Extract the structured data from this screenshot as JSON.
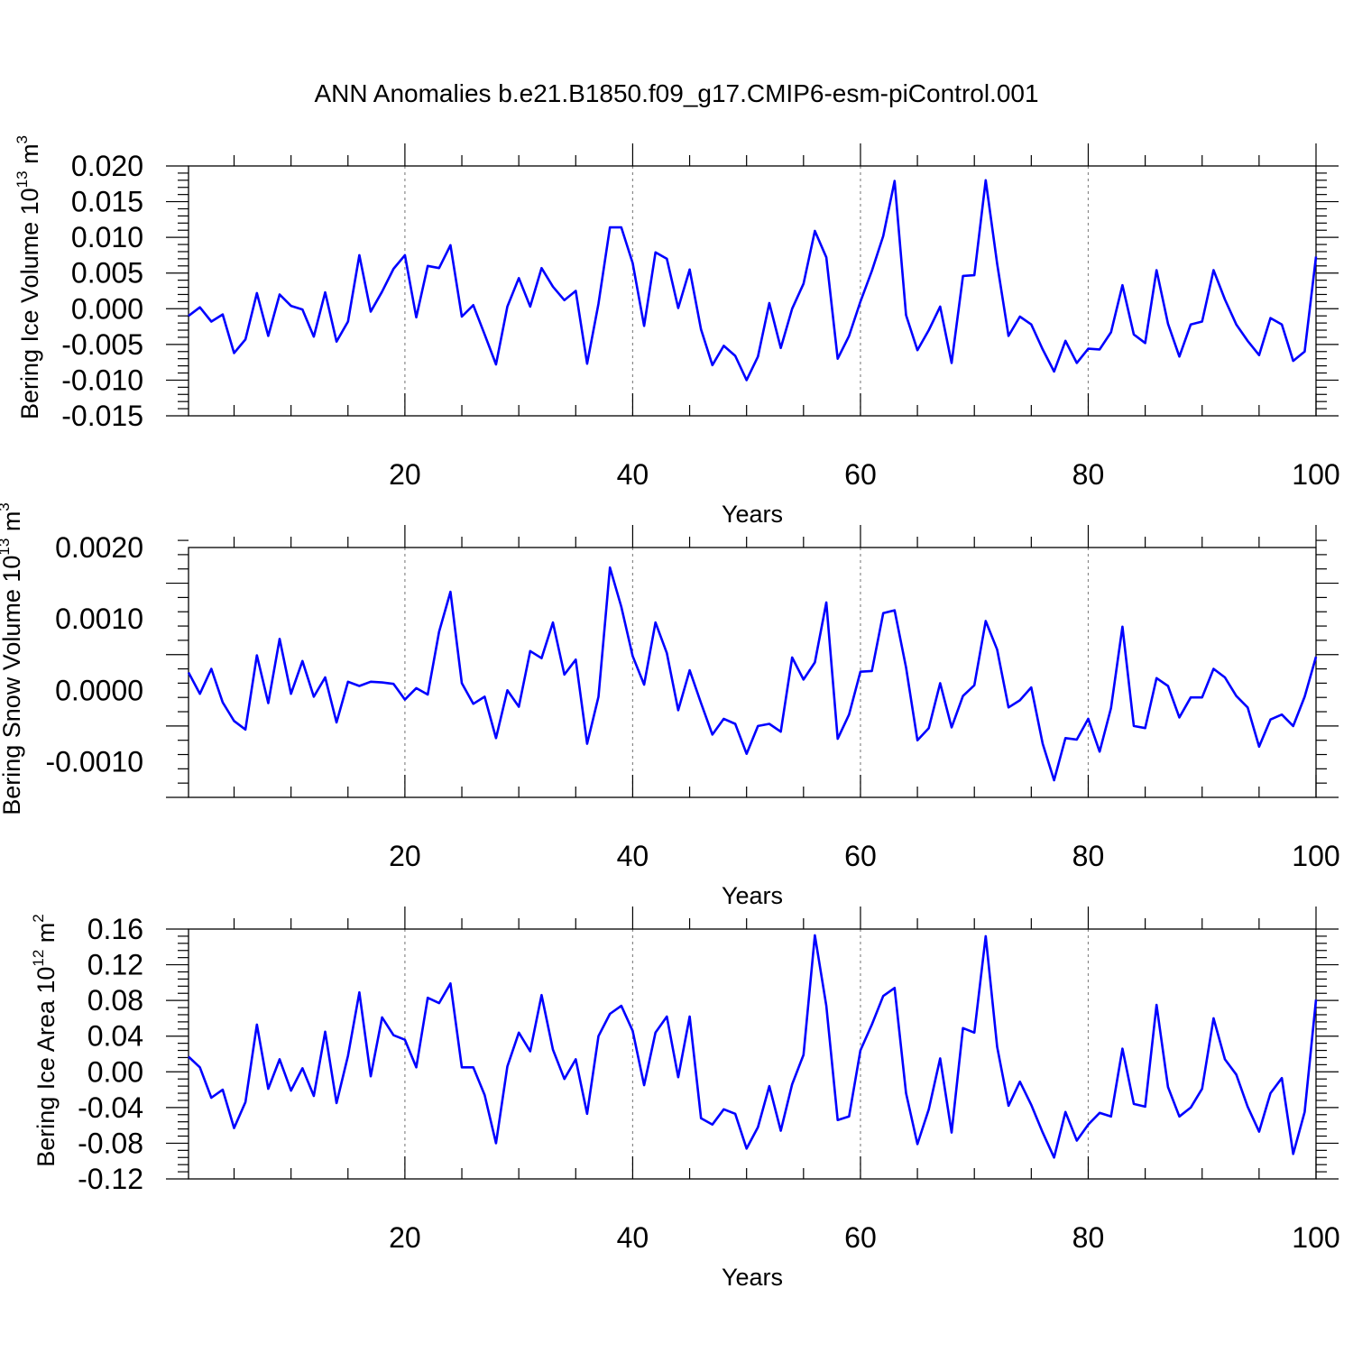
{
  "title": "ANN Anomalies b.e21.B1850.f09_g17.CMIP6-esm-piControl.001",
  "chart_data": [
    {
      "type": "line",
      "xlabel": "Years",
      "ylabel": "Bering Ice Volume 10",
      "ylabel_exp": "13",
      "ylabel_unit": " m",
      "ylabel_unit_exp": "3",
      "xlim": [
        1,
        100
      ],
      "ylim": [
        -0.015,
        0.02
      ],
      "xticks": [
        20,
        40,
        60,
        80,
        100
      ],
      "yticks": [
        -0.015,
        -0.01,
        -0.005,
        0.0,
        0.005,
        0.01,
        0.015,
        0.02
      ],
      "ytick_labels": [
        "-0.015",
        "-0.010",
        "-0.005",
        "0.000",
        "0.005",
        "0.010",
        "0.015",
        "0.020"
      ],
      "grid": "dashed vertical at x ticks",
      "line_color": "#0000ff",
      "x": [
        1,
        2,
        3,
        4,
        5,
        6,
        7,
        8,
        9,
        10,
        11,
        12,
        13,
        14,
        15,
        16,
        17,
        18,
        19,
        20,
        21,
        22,
        23,
        24,
        25,
        26,
        27,
        28,
        29,
        30,
        31,
        32,
        33,
        34,
        35,
        36,
        37,
        38,
        39,
        40,
        41,
        42,
        43,
        44,
        45,
        46,
        47,
        48,
        49,
        50,
        51,
        52,
        53,
        54,
        55,
        56,
        57,
        58,
        59,
        60,
        61,
        62,
        63,
        64,
        65,
        66,
        67,
        68,
        69,
        70,
        71,
        72,
        73,
        74,
        75,
        76,
        77,
        78,
        79,
        80,
        81,
        82,
        83,
        84,
        85,
        86,
        87,
        88,
        89,
        90,
        91,
        92,
        93,
        94,
        95,
        96,
        97,
        98,
        99,
        100
      ],
      "y": [
        -0.001,
        0.0002,
        -0.0018,
        -0.0008,
        -0.0062,
        -0.0043,
        0.0022,
        -0.0038,
        0.002,
        0.0004,
        -0.0001,
        -0.0039,
        0.0023,
        -0.0046,
        -0.0018,
        0.0075,
        -0.0004,
        0.0024,
        0.0056,
        0.0075,
        -0.0012,
        0.006,
        0.0057,
        0.0089,
        -0.0011,
        0.0005,
        -0.0036,
        -0.0078,
        0.0003,
        0.0043,
        0.0003,
        0.0057,
        0.0031,
        0.0012,
        0.0025,
        -0.0077,
        0.0007,
        0.0114,
        0.0114,
        0.0064,
        -0.0024,
        0.0079,
        0.007,
        0.0001,
        0.0055,
        -0.0029,
        -0.0079,
        -0.0052,
        -0.0066,
        -0.01,
        -0.0067,
        0.0008,
        -0.0055,
        0.0,
        0.0035,
        0.0109,
        0.0072,
        -0.007,
        -0.0038,
        0.001,
        0.0053,
        0.0102,
        0.0179,
        -0.0009,
        -0.0058,
        -0.003,
        0.0003,
        -0.0076,
        0.0046,
        0.0047,
        0.018,
        0.0063,
        -0.0038,
        -0.0011,
        -0.0022,
        -0.0057,
        -0.0088,
        -0.0045,
        -0.0076,
        -0.0056,
        -0.0057,
        -0.0033,
        0.0033,
        -0.0036,
        -0.0048,
        0.0054,
        -0.0021,
        -0.0067,
        -0.0022,
        -0.0018,
        0.0054,
        0.0013,
        -0.0022,
        -0.0045,
        -0.0065,
        -0.0013,
        -0.0022,
        -0.0073,
        -0.006,
        0.0073
      ]
    },
    {
      "type": "line",
      "xlabel": "Years",
      "ylabel": "Bering Snow Volume 10",
      "ylabel_exp": "13",
      "ylabel_unit": " m",
      "ylabel_unit_exp": "3",
      "xlim": [
        1,
        100
      ],
      "ylim": [
        -0.0015,
        0.002
      ],
      "xticks": [
        20,
        40,
        60,
        80,
        100
      ],
      "yticks": [
        -0.001,
        0.0,
        0.001,
        0.002
      ],
      "ytick_labels": [
        "-0.0010",
        "0.0000",
        "0.0010",
        "0.0020"
      ],
      "grid": "dashed vertical at x ticks",
      "line_color": "#0000ff",
      "x": [
        1,
        2,
        3,
        4,
        5,
        6,
        7,
        8,
        9,
        10,
        11,
        12,
        13,
        14,
        15,
        16,
        17,
        18,
        19,
        20,
        21,
        22,
        23,
        24,
        25,
        26,
        27,
        28,
        29,
        30,
        31,
        32,
        33,
        34,
        35,
        36,
        37,
        38,
        39,
        40,
        41,
        42,
        43,
        44,
        45,
        46,
        47,
        48,
        49,
        50,
        51,
        52,
        53,
        54,
        55,
        56,
        57,
        58,
        59,
        60,
        61,
        62,
        63,
        64,
        65,
        66,
        67,
        68,
        69,
        70,
        71,
        72,
        73,
        74,
        75,
        76,
        77,
        78,
        79,
        80,
        81,
        82,
        83,
        84,
        85,
        86,
        87,
        88,
        89,
        90,
        91,
        92,
        93,
        94,
        95,
        96,
        97,
        98,
        99,
        100
      ],
      "y": [
        0.00025,
        -5e-05,
        0.0003,
        -0.00017,
        -0.00043,
        -0.00055,
        0.00049,
        -0.00018,
        0.00072,
        -5e-05,
        0.00041,
        -9e-05,
        0.00018,
        -0.00045,
        0.00012,
        6e-05,
        0.00012,
        0.00011,
        9e-05,
        -0.00013,
        3e-05,
        -6e-05,
        0.00082,
        0.00138,
        0.0001,
        -0.00019,
        -9e-05,
        -0.00067,
        0.0,
        -0.00023,
        0.00055,
        0.00045,
        0.00095,
        0.00022,
        0.00043,
        -0.00075,
        -9e-05,
        0.00172,
        0.00117,
        0.00048,
        8e-05,
        0.00095,
        0.00052,
        -0.00028,
        0.00028,
        -0.00018,
        -0.00062,
        -0.0004,
        -0.00047,
        -0.00089,
        -0.0005,
        -0.00047,
        -0.00058,
        0.00046,
        0.00015,
        0.00039,
        0.00123,
        -0.00068,
        -0.00034,
        0.00026,
        0.00027,
        0.00108,
        0.00112,
        0.00032,
        -0.0007,
        -0.00053,
        0.0001,
        -0.00052,
        -8e-05,
        7e-05,
        0.00097,
        0.00057,
        -0.00024,
        -0.00014,
        4e-05,
        -0.00075,
        -0.00126,
        -0.00067,
        -0.00069,
        -0.0004,
        -0.00086,
        -0.00025,
        0.00089,
        -0.0005,
        -0.00053,
        0.00017,
        6e-05,
        -0.00038,
        -0.0001,
        -0.0001,
        0.0003,
        0.00018,
        -8e-05,
        -0.00024,
        -0.00079,
        -0.00041,
        -0.00034,
        -0.0005,
        -9e-05,
        0.00047
      ]
    },
    {
      "type": "line",
      "xlabel": "Years",
      "ylabel": "Bering Ice Area 10",
      "ylabel_exp": "12",
      "ylabel_unit": " m",
      "ylabel_unit_exp": "2",
      "xlim": [
        1,
        100
      ],
      "ylim": [
        -0.12,
        0.16
      ],
      "xticks": [
        20,
        40,
        60,
        80,
        100
      ],
      "yticks": [
        -0.12,
        -0.08,
        -0.04,
        0.0,
        0.04,
        0.08,
        0.12,
        0.16
      ],
      "ytick_labels": [
        "-0.12",
        "-0.08",
        "-0.04",
        "0.00",
        "0.04",
        "0.08",
        "0.12",
        "0.16"
      ],
      "grid": "dashed vertical at x ticks",
      "line_color": "#0000ff",
      "x": [
        1,
        2,
        3,
        4,
        5,
        6,
        7,
        8,
        9,
        10,
        11,
        12,
        13,
        14,
        15,
        16,
        17,
        18,
        19,
        20,
        21,
        22,
        23,
        24,
        25,
        26,
        27,
        28,
        29,
        30,
        31,
        32,
        33,
        34,
        35,
        36,
        37,
        38,
        39,
        40,
        41,
        42,
        43,
        44,
        45,
        46,
        47,
        48,
        49,
        50,
        51,
        52,
        53,
        54,
        55,
        56,
        57,
        58,
        59,
        60,
        61,
        62,
        63,
        64,
        65,
        66,
        67,
        68,
        69,
        70,
        71,
        72,
        73,
        74,
        75,
        76,
        77,
        78,
        79,
        80,
        81,
        82,
        83,
        84,
        85,
        86,
        87,
        88,
        89,
        90,
        91,
        92,
        93,
        94,
        95,
        96,
        97,
        98,
        99,
        100
      ],
      "y": [
        0.017,
        0.005,
        -0.029,
        -0.02,
        -0.063,
        -0.034,
        0.053,
        -0.019,
        0.014,
        -0.021,
        0.004,
        -0.027,
        0.045,
        -0.035,
        0.018,
        0.089,
        -0.005,
        0.061,
        0.041,
        0.036,
        0.005,
        0.083,
        0.077,
        0.099,
        0.005,
        0.005,
        -0.026,
        -0.08,
        0.006,
        0.044,
        0.023,
        0.086,
        0.025,
        -0.008,
        0.014,
        -0.047,
        0.04,
        0.065,
        0.074,
        0.046,
        -0.015,
        0.044,
        0.062,
        -0.006,
        0.062,
        -0.052,
        -0.059,
        -0.042,
        -0.047,
        -0.086,
        -0.062,
        -0.016,
        -0.066,
        -0.014,
        0.019,
        0.153,
        0.074,
        -0.054,
        -0.05,
        0.024,
        0.053,
        0.085,
        0.094,
        -0.024,
        -0.081,
        -0.042,
        0.015,
        -0.068,
        0.049,
        0.044,
        0.152,
        0.028,
        -0.038,
        -0.011,
        -0.037,
        -0.068,
        -0.096,
        -0.045,
        -0.077,
        -0.059,
        -0.046,
        -0.05,
        0.026,
        -0.036,
        -0.039,
        0.075,
        -0.017,
        -0.05,
        -0.04,
        -0.019,
        0.06,
        0.014,
        -0.003,
        -0.039,
        -0.067,
        -0.024,
        -0.007,
        -0.092,
        -0.045,
        0.081
      ]
    }
  ]
}
